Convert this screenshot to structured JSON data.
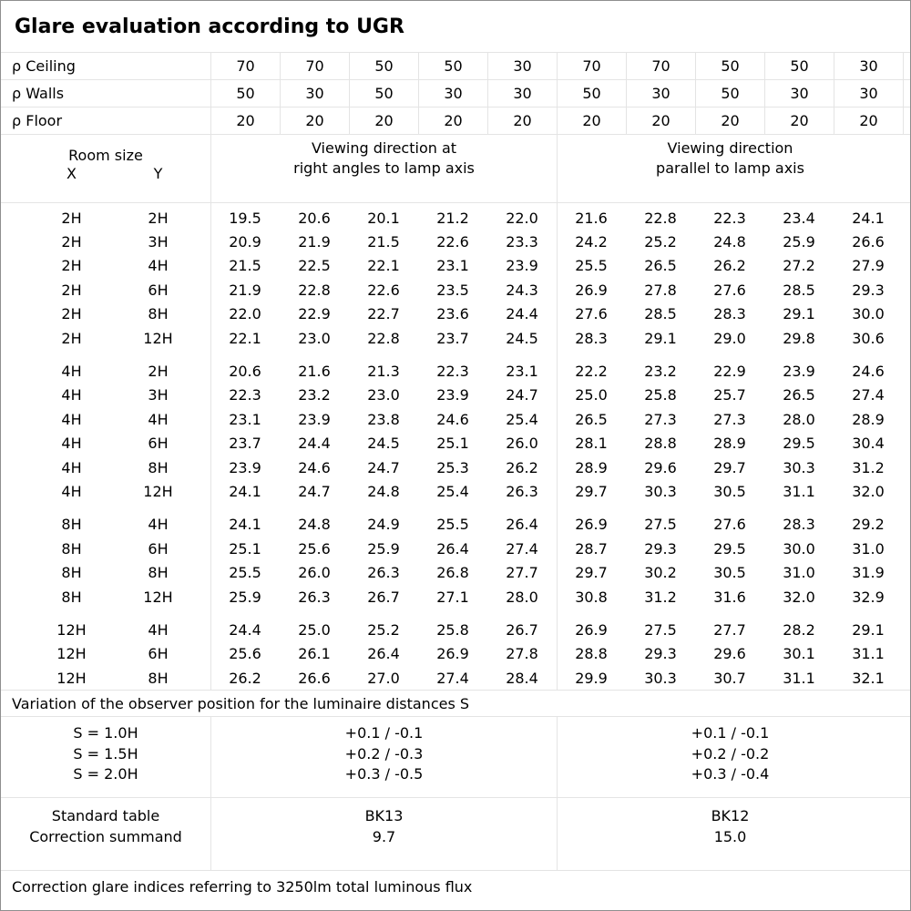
{
  "title": "Glare evaluation according to UGR",
  "colors": {
    "grid_line": "#e4e4e4",
    "outer_border": "#8f8f8f",
    "text": "#000000",
    "background": "#ffffff"
  },
  "reflectance_rows": [
    {
      "label": "ρ Ceiling",
      "values": [
        "70",
        "70",
        "50",
        "50",
        "30",
        "70",
        "70",
        "50",
        "50",
        "30"
      ]
    },
    {
      "label": "ρ Walls",
      "values": [
        "50",
        "30",
        "50",
        "30",
        "30",
        "50",
        "30",
        "50",
        "30",
        "30"
      ]
    },
    {
      "label": "ρ Floor",
      "values": [
        "20",
        "20",
        "20",
        "20",
        "20",
        "20",
        "20",
        "20",
        "20",
        "20"
      ]
    }
  ],
  "room_header": {
    "title": "Room size",
    "x_label": "X",
    "y_label": "Y"
  },
  "direction_headers": {
    "right_angles_line1": "Viewing direction at",
    "right_angles_line2": "right angles to lamp axis",
    "parallel_line1": "Viewing direction",
    "parallel_line2": "parallel to lamp axis"
  },
  "ugr_table": {
    "groups": [
      {
        "rows": [
          {
            "x": "2H",
            "y": "2H",
            "values": [
              "19.5",
              "20.6",
              "20.1",
              "21.2",
              "22.0",
              "21.6",
              "22.8",
              "22.3",
              "23.4",
              "24.1"
            ]
          },
          {
            "x": "2H",
            "y": "3H",
            "values": [
              "20.9",
              "21.9",
              "21.5",
              "22.6",
              "23.3",
              "24.2",
              "25.2",
              "24.8",
              "25.9",
              "26.6"
            ]
          },
          {
            "x": "2H",
            "y": "4H",
            "values": [
              "21.5",
              "22.5",
              "22.1",
              "23.1",
              "23.9",
              "25.5",
              "26.5",
              "26.2",
              "27.2",
              "27.9"
            ]
          },
          {
            "x": "2H",
            "y": "6H",
            "values": [
              "21.9",
              "22.8",
              "22.6",
              "23.5",
              "24.3",
              "26.9",
              "27.8",
              "27.6",
              "28.5",
              "29.3"
            ]
          },
          {
            "x": "2H",
            "y": "8H",
            "values": [
              "22.0",
              "22.9",
              "22.7",
              "23.6",
              "24.4",
              "27.6",
              "28.5",
              "28.3",
              "29.1",
              "30.0"
            ]
          },
          {
            "x": "2H",
            "y": "12H",
            "values": [
              "22.1",
              "23.0",
              "22.8",
              "23.7",
              "24.5",
              "28.3",
              "29.1",
              "29.0",
              "29.8",
              "30.6"
            ]
          }
        ]
      },
      {
        "rows": [
          {
            "x": "4H",
            "y": "2H",
            "values": [
              "20.6",
              "21.6",
              "21.3",
              "22.3",
              "23.1",
              "22.2",
              "23.2",
              "22.9",
              "23.9",
              "24.6"
            ]
          },
          {
            "x": "4H",
            "y": "3H",
            "values": [
              "22.3",
              "23.2",
              "23.0",
              "23.9",
              "24.7",
              "25.0",
              "25.8",
              "25.7",
              "26.5",
              "27.4"
            ]
          },
          {
            "x": "4H",
            "y": "4H",
            "values": [
              "23.1",
              "23.9",
              "23.8",
              "24.6",
              "25.4",
              "26.5",
              "27.3",
              "27.3",
              "28.0",
              "28.9"
            ]
          },
          {
            "x": "4H",
            "y": "6H",
            "values": [
              "23.7",
              "24.4",
              "24.5",
              "25.1",
              "26.0",
              "28.1",
              "28.8",
              "28.9",
              "29.5",
              "30.4"
            ]
          },
          {
            "x": "4H",
            "y": "8H",
            "values": [
              "23.9",
              "24.6",
              "24.7",
              "25.3",
              "26.2",
              "28.9",
              "29.6",
              "29.7",
              "30.3",
              "31.2"
            ]
          },
          {
            "x": "4H",
            "y": "12H",
            "values": [
              "24.1",
              "24.7",
              "24.8",
              "25.4",
              "26.3",
              "29.7",
              "30.3",
              "30.5",
              "31.1",
              "32.0"
            ]
          }
        ]
      },
      {
        "rows": [
          {
            "x": "8H",
            "y": "4H",
            "values": [
              "24.1",
              "24.8",
              "24.9",
              "25.5",
              "26.4",
              "26.9",
              "27.5",
              "27.6",
              "28.3",
              "29.2"
            ]
          },
          {
            "x": "8H",
            "y": "6H",
            "values": [
              "25.1",
              "25.6",
              "25.9",
              "26.4",
              "27.4",
              "28.7",
              "29.3",
              "29.5",
              "30.0",
              "31.0"
            ]
          },
          {
            "x": "8H",
            "y": "8H",
            "values": [
              "25.5",
              "26.0",
              "26.3",
              "26.8",
              "27.7",
              "29.7",
              "30.2",
              "30.5",
              "31.0",
              "31.9"
            ]
          },
          {
            "x": "8H",
            "y": "12H",
            "values": [
              "25.9",
              "26.3",
              "26.7",
              "27.1",
              "28.0",
              "30.8",
              "31.2",
              "31.6",
              "32.0",
              "32.9"
            ]
          }
        ]
      },
      {
        "rows": [
          {
            "x": "12H",
            "y": "4H",
            "values": [
              "24.4",
              "25.0",
              "25.2",
              "25.8",
              "26.7",
              "26.9",
              "27.5",
              "27.7",
              "28.2",
              "29.1"
            ]
          },
          {
            "x": "12H",
            "y": "6H",
            "values": [
              "25.6",
              "26.1",
              "26.4",
              "26.9",
              "27.8",
              "28.8",
              "29.3",
              "29.6",
              "30.1",
              "31.1"
            ]
          },
          {
            "x": "12H",
            "y": "8H",
            "values": [
              "26.2",
              "26.6",
              "27.0",
              "27.4",
              "28.4",
              "29.9",
              "30.3",
              "30.7",
              "31.1",
              "32.1"
            ]
          }
        ]
      }
    ]
  },
  "variation": {
    "note": "Variation of the observer position for the luminaire distances S",
    "labels": [
      "S = 1.0H",
      "S = 1.5H",
      "S = 2.0H"
    ],
    "right_angles": [
      "+0.1 / -0.1",
      "+0.2 / -0.3",
      "+0.3 / -0.5"
    ],
    "parallel": [
      "+0.1 / -0.1",
      "+0.2 / -0.2",
      "+0.3 / -0.4"
    ]
  },
  "summary": {
    "labels": [
      "Standard table",
      "Correction summand"
    ],
    "right_angles": [
      "BK13",
      "9.7"
    ],
    "parallel": [
      "BK12",
      "15.0"
    ]
  },
  "footer": "Correction glare indices referring to 3250lm total luminous flux"
}
